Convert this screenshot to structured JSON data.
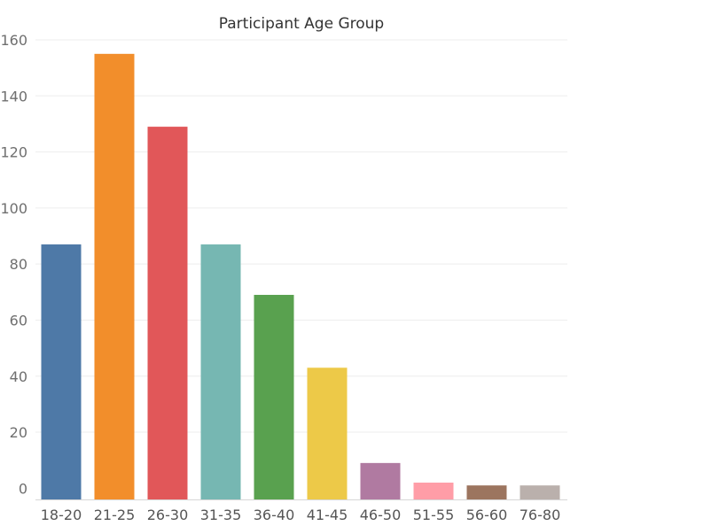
{
  "chart_data": {
    "type": "bar",
    "title": "Participant Age Group",
    "xlabel": "",
    "ylabel": "",
    "categories": [
      "18-20",
      "21-25",
      "26-30",
      "31-35",
      "36-40",
      "41-45",
      "46-50",
      "51-55",
      "56-60",
      "76-80"
    ],
    "values": [
      87,
      155,
      129,
      87,
      69,
      43,
      9,
      2,
      1,
      1
    ],
    "colors": [
      "#4e79a7",
      "#f28e2b",
      "#e15759",
      "#76b7b2",
      "#59a14f",
      "#edc948",
      "#b07aa1",
      "#ff9da7",
      "#9c755f",
      "#bab0ac"
    ],
    "yticks": [
      0,
      20,
      40,
      60,
      80,
      100,
      120,
      140,
      160
    ],
    "ylim": [
      -4,
      160
    ],
    "grid": true,
    "legend": "none"
  }
}
